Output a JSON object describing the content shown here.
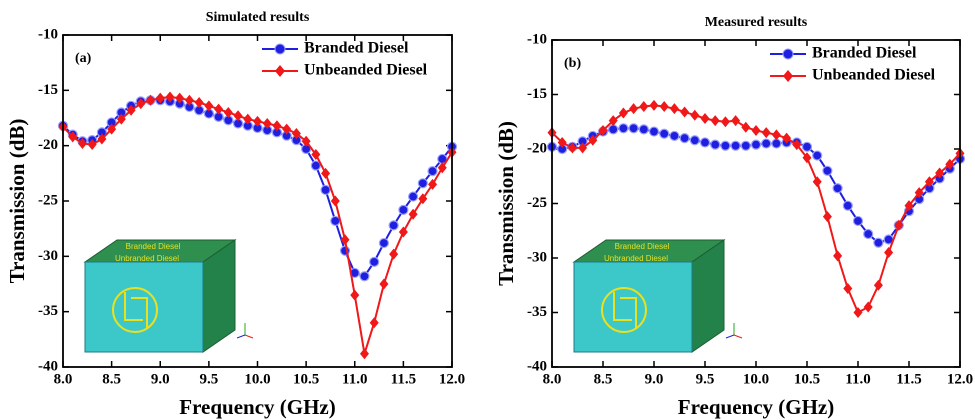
{
  "chart_data": [
    {
      "type": "line",
      "title": "Simulated results",
      "panel_label": "(a)",
      "xlabel": "Frequency (GHz)",
      "ylabel": "Transmission (dB)",
      "xlim": [
        8,
        12
      ],
      "ylim": [
        -40,
        -10
      ],
      "xticks": [
        {
          "value": 8,
          "label": "8.0"
        },
        8.5,
        {
          "value": 9,
          "label": "9.0"
        },
        9.5,
        {
          "value": 10,
          "label": "10.0"
        },
        10.5,
        {
          "value": 11,
          "label": "11.0"
        },
        11.5,
        {
          "value": 12,
          "label": "12.0"
        }
      ],
      "yticks": [
        -40,
        -35,
        -30,
        -25,
        -20,
        -15,
        -10
      ],
      "legend": "upper right",
      "inset_labels": [
        "Branded Diesel",
        "Unbranded Diesel"
      ],
      "x": [
        8,
        8.1,
        8.2,
        8.3,
        8.4,
        8.5,
        8.6,
        8.7,
        8.8,
        8.9,
        9,
        9.1,
        9.2,
        9.3,
        9.4,
        9.5,
        9.6,
        9.7,
        9.8,
        9.9,
        10,
        10.1,
        10.2,
        10.3,
        10.4,
        10.5,
        10.6,
        10.7,
        10.8,
        10.9,
        11,
        11.1,
        11.2,
        11.3,
        11.4,
        11.5,
        11.6,
        11.7,
        11.8,
        11.9,
        12
      ],
      "series": [
        {
          "name": "Branded Diesel",
          "color": "#1f1fe0",
          "marker": "circle",
          "values": [
            -18.2,
            -19.0,
            -19.6,
            -19.5,
            -18.8,
            -17.9,
            -17.0,
            -16.4,
            -16.0,
            -15.9,
            -15.9,
            -16.0,
            -16.2,
            -16.5,
            -16.8,
            -17.1,
            -17.4,
            -17.7,
            -18.0,
            -18.2,
            -18.4,
            -18.6,
            -18.8,
            -19.1,
            -19.5,
            -20.3,
            -21.8,
            -24.0,
            -26.8,
            -29.5,
            -31.5,
            -31.8,
            -30.5,
            -28.8,
            -27.2,
            -25.8,
            -24.6,
            -23.4,
            -22.3,
            -21.2,
            -20.1
          ]
        },
        {
          "name": "Unbeanded Diesel",
          "color": "#f01818",
          "marker": "diamond",
          "values": [
            -18.3,
            -19.2,
            -19.8,
            -19.9,
            -19.4,
            -18.5,
            -17.6,
            -16.8,
            -16.2,
            -15.9,
            -15.7,
            -15.6,
            -15.7,
            -15.9,
            -16.1,
            -16.4,
            -16.7,
            -17.0,
            -17.3,
            -17.6,
            -17.8,
            -18.0,
            -18.2,
            -18.5,
            -18.9,
            -19.6,
            -20.8,
            -22.5,
            -25.0,
            -28.5,
            -33.5,
            -38.8,
            -36.0,
            -32.5,
            -29.8,
            -27.8,
            -26.2,
            -24.8,
            -23.5,
            -22.0,
            -20.6
          ]
        }
      ]
    },
    {
      "type": "line",
      "title": "Measured results",
      "panel_label": "(b)",
      "xlabel": "Frequency (GHz)",
      "ylabel": "Transmission (dB)",
      "xlim": [
        8,
        12
      ],
      "ylim": [
        -40,
        -10
      ],
      "xticks": [
        {
          "value": 8,
          "label": "8.0"
        },
        8.5,
        {
          "value": 9,
          "label": "9.0"
        },
        9.5,
        {
          "value": 10,
          "label": "10.0"
        },
        10.5,
        {
          "value": 11,
          "label": "11.0"
        },
        11.5,
        {
          "value": 12,
          "label": "12.0"
        }
      ],
      "yticks": [
        -40,
        -35,
        -30,
        -25,
        -20,
        -15,
        -10
      ],
      "legend": "upper right",
      "inset_labels": [
        "Branded Diesel",
        "Unbranded Diesel"
      ],
      "x": [
        8,
        8.1,
        8.2,
        8.3,
        8.4,
        8.5,
        8.6,
        8.7,
        8.8,
        8.9,
        9,
        9.1,
        9.2,
        9.3,
        9.4,
        9.5,
        9.6,
        9.7,
        9.8,
        9.9,
        10,
        10.1,
        10.2,
        10.3,
        10.4,
        10.5,
        10.6,
        10.7,
        10.8,
        10.9,
        11,
        11.1,
        11.2,
        11.3,
        11.4,
        11.5,
        11.6,
        11.7,
        11.8,
        11.9,
        12
      ],
      "series": [
        {
          "name": "Branded Diesel",
          "color": "#1f1fe0",
          "marker": "circle",
          "values": [
            -19.8,
            -20.0,
            -19.8,
            -19.3,
            -18.8,
            -18.4,
            -18.2,
            -18.1,
            -18.1,
            -18.2,
            -18.4,
            -18.6,
            -18.8,
            -19.0,
            -19.2,
            -19.4,
            -19.6,
            -19.7,
            -19.7,
            -19.7,
            -19.6,
            -19.5,
            -19.5,
            -19.4,
            -19.4,
            -19.8,
            -20.6,
            -22.0,
            -23.6,
            -25.2,
            -26.6,
            -27.8,
            -28.6,
            -28.3,
            -27.0,
            -25.7,
            -24.6,
            -23.6,
            -22.7,
            -21.8,
            -20.9
          ]
        },
        {
          "name": "Unbeanded Diesel",
          "color": "#f01818",
          "marker": "diamond",
          "values": [
            -18.5,
            -19.4,
            -19.9,
            -19.9,
            -19.2,
            -18.3,
            -17.4,
            -16.7,
            -16.3,
            -16.1,
            -16.0,
            -16.1,
            -16.3,
            -16.6,
            -16.9,
            -17.2,
            -17.4,
            -17.5,
            -17.4,
            -18.0,
            -18.3,
            -18.5,
            -18.7,
            -19.0,
            -19.6,
            -20.8,
            -23.0,
            -26.2,
            -29.8,
            -32.8,
            -35.0,
            -34.5,
            -32.5,
            -29.5,
            -27.0,
            -25.2,
            -24.0,
            -23.0,
            -22.2,
            -21.4,
            -20.4
          ]
        }
      ]
    }
  ]
}
